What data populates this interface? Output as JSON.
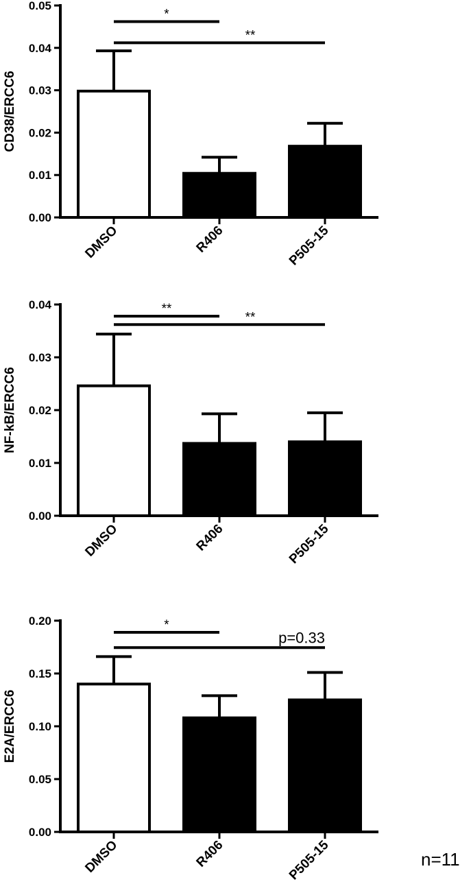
{
  "chart_data": [
    {
      "type": "bar",
      "categories": [
        "DMSO",
        "R406",
        "P505-15"
      ],
      "values": [
        0.0298,
        0.0104,
        0.0168
      ],
      "errors": [
        0.0095,
        0.0038,
        0.0054
      ],
      "bar_colors": [
        "#ffffff",
        "#000000",
        "#000000"
      ],
      "ylabel": "CD38/ERCC6",
      "ylim": [
        0,
        0.05
      ],
      "yticks": [
        0.0,
        0.01,
        0.02,
        0.03,
        0.04,
        0.05
      ],
      "ytick_labels": [
        "0.00",
        "0.01",
        "0.02",
        "0.03",
        "0.04",
        "0.05"
      ],
      "significance": [
        {
          "from": "DMSO",
          "to": "R406",
          "label": "*",
          "y": 0.0462
        },
        {
          "from": "DMSO",
          "to": "P505-15",
          "label": "**",
          "y": 0.0412
        }
      ]
    },
    {
      "type": "bar",
      "categories": [
        "DMSO",
        "R406",
        "P505-15"
      ],
      "values": [
        0.0246,
        0.0137,
        0.014
      ],
      "errors": [
        0.0098,
        0.0056,
        0.0055
      ],
      "bar_colors": [
        "#ffffff",
        "#000000",
        "#000000"
      ],
      "ylabel": "NF-kB/ERCC6",
      "ylim": [
        0,
        0.04
      ],
      "yticks": [
        0.0,
        0.01,
        0.02,
        0.03,
        0.04
      ],
      "ytick_labels": [
        "0.00",
        "0.01",
        "0.02",
        "0.03",
        "0.04"
      ],
      "significance": [
        {
          "from": "DMSO",
          "to": "R406",
          "label": "**",
          "y": 0.0378
        },
        {
          "from": "DMSO",
          "to": "P505-15",
          "label": "**",
          "y": 0.0362
        }
      ]
    },
    {
      "type": "bar",
      "categories": [
        "DMSO",
        "R406",
        "P505-15"
      ],
      "values": [
        0.14,
        0.108,
        0.125
      ],
      "errors": [
        0.026,
        0.021,
        0.026
      ],
      "bar_colors": [
        "#ffffff",
        "#000000",
        "#000000"
      ],
      "ylabel": "E2A/ERCC6",
      "ylim": [
        0,
        0.2
      ],
      "yticks": [
        0.0,
        0.05,
        0.1,
        0.15,
        0.2
      ],
      "ytick_labels": [
        "0.00",
        "0.05",
        "0.10",
        "0.15",
        "0.20"
      ],
      "significance": [
        {
          "from": "DMSO",
          "to": "R406",
          "label": "*",
          "y": 0.189
        },
        {
          "from": "DMSO",
          "to": "P505-15",
          "label": "p=0.33",
          "y": 0.1745
        }
      ]
    }
  ],
  "footnote": "n=11"
}
